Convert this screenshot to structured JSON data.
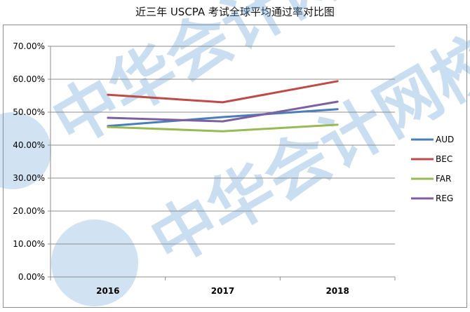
{
  "chart_data": {
    "type": "line",
    "title": "近三年 USCPA 考试全球平均通过率对比图",
    "categories": [
      "2016",
      "2017",
      "2018"
    ],
    "series": [
      {
        "name": "AUD",
        "values": [
          45.8,
          48.5,
          50.9
        ],
        "color": "#4a7ebb"
      },
      {
        "name": "BEC",
        "values": [
          55.3,
          53.0,
          59.4
        ],
        "color": "#be4b48"
      },
      {
        "name": "FAR",
        "values": [
          45.5,
          44.2,
          46.2
        ],
        "color": "#98b954"
      },
      {
        "name": "REG",
        "values": [
          48.3,
          47.2,
          53.2
        ],
        "color": "#7d60a0"
      }
    ],
    "ylim": [
      0,
      70
    ],
    "yticks": [
      "0.00%",
      "10.00%",
      "20.00%",
      "30.00%",
      "40.00%",
      "50.00%",
      "60.00%",
      "70.00%"
    ],
    "grid": true,
    "legend_position": "right"
  },
  "watermark": {
    "text_1": "中华会计网校",
    "text_2": "中华会计网校",
    "color": "#5b9bd5"
  }
}
